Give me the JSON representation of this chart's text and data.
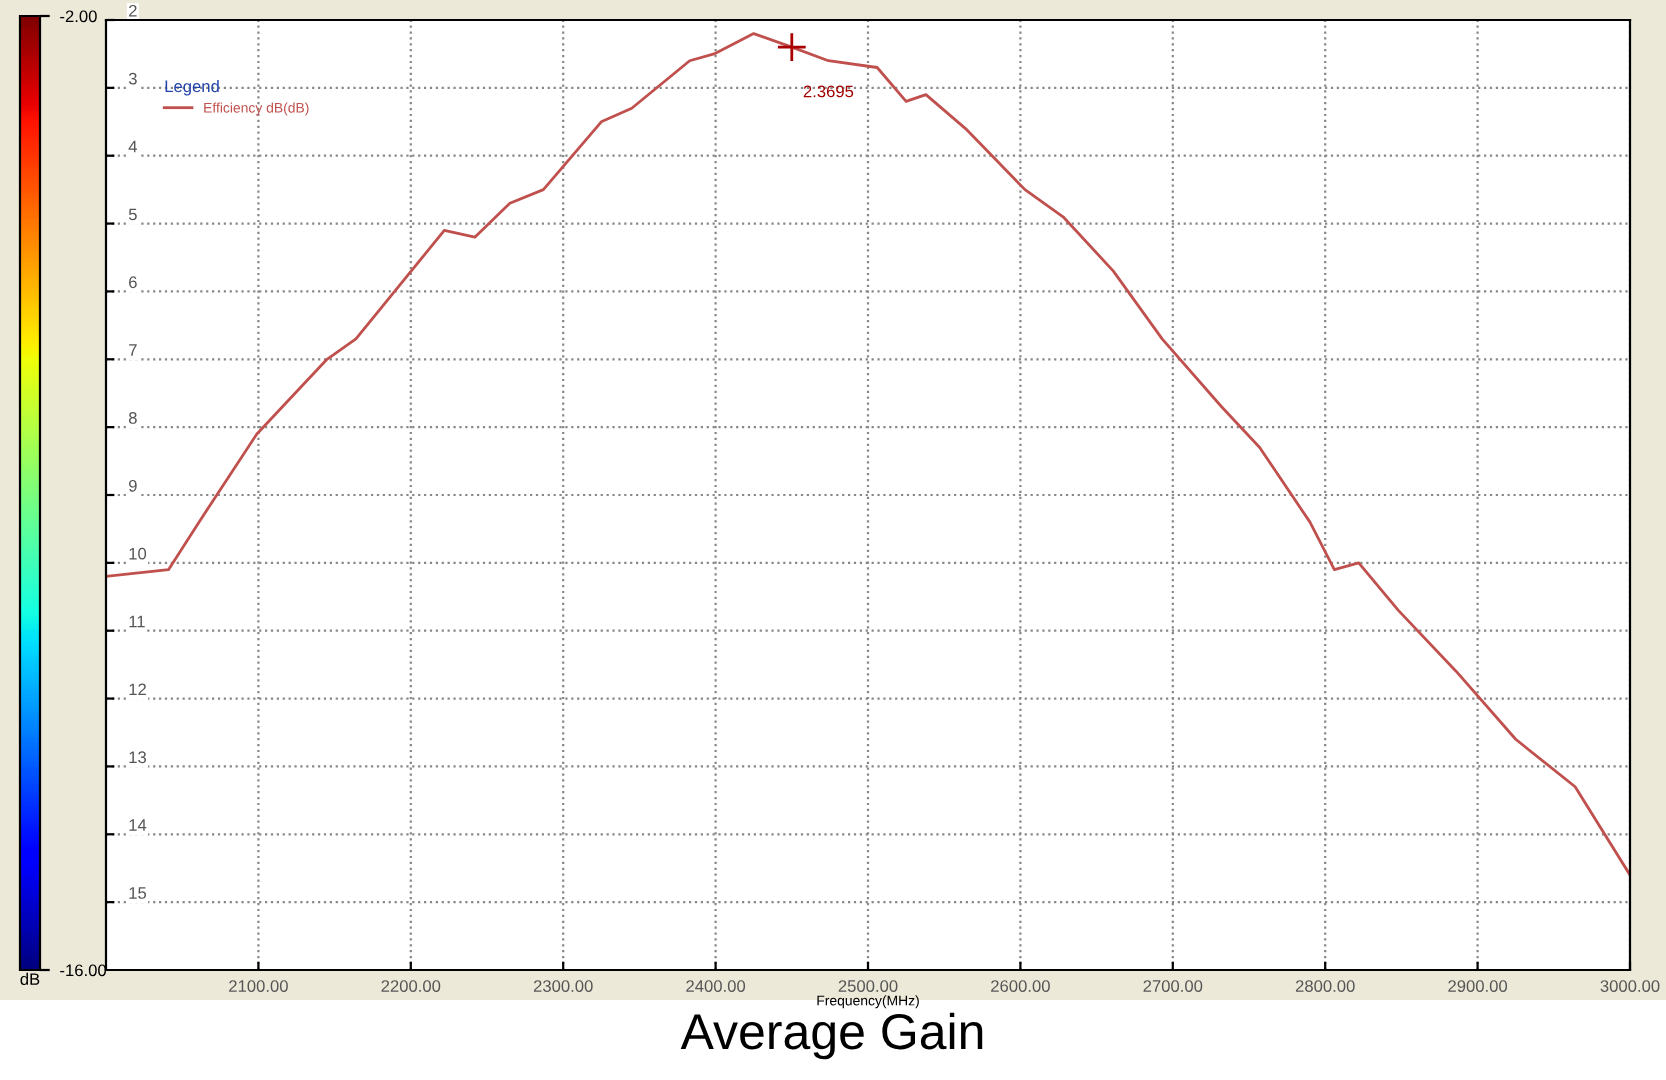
{
  "chart_data": {
    "type": "line",
    "title": "Average Gain",
    "xlabel": "Frequency(MHz)",
    "legend_title": "Legend",
    "clabel": "dB",
    "x": [
      2000,
      2041,
      2061,
      2099,
      2145,
      2164,
      2222,
      2242,
      2265,
      2287,
      2325,
      2345,
      2383,
      2399,
      2425,
      2450,
      2474,
      2506,
      2525,
      2538,
      2564,
      2603,
      2628,
      2661,
      2693,
      2732,
      2757,
      2790,
      2806,
      2822,
      2848,
      2886,
      2925,
      2964,
      3000
    ],
    "series": [
      {
        "name": "Efficiency dB(dB)",
        "color": "#c0504d",
        "values": [
          10.2,
          10.1,
          9.4,
          8.1,
          7.0,
          6.7,
          5.1,
          5.2,
          4.7,
          4.5,
          3.5,
          3.3,
          2.6,
          2.5,
          2.2,
          2.4,
          2.6,
          2.7,
          3.2,
          3.1,
          3.6,
          4.5,
          4.9,
          5.7,
          6.7,
          7.7,
          8.3,
          9.4,
          10.1,
          10.0,
          10.7,
          11.6,
          12.6,
          13.3,
          14.6
        ]
      }
    ],
    "annotations": [
      {
        "text": "2.3695",
        "x": 2450,
        "y": 2.4
      }
    ],
    "xlim": [
      2000,
      3000
    ],
    "xticks": [
      {
        "value": 2100,
        "label": "2100.00"
      },
      {
        "value": 2200,
        "label": "2200.00"
      },
      {
        "value": 2300,
        "label": "2300.00"
      },
      {
        "value": 2400,
        "label": "2400.00"
      },
      {
        "value": 2500,
        "label": "2500.00"
      },
      {
        "value": 2600,
        "label": "2600.00"
      },
      {
        "value": 2700,
        "label": "2700.00"
      },
      {
        "value": 2800,
        "label": "2800.00"
      },
      {
        "value": 2900,
        "label": "2900.00"
      },
      {
        "value": 3000,
        "label": "3000.00"
      }
    ],
    "ylim": [
      16,
      2
    ],
    "yticks": [
      2,
      3,
      4,
      5,
      6,
      7,
      8,
      9,
      10,
      11,
      12,
      13,
      14,
      15
    ],
    "clim": [
      -16,
      -2
    ],
    "cticks": [
      {
        "value": -2,
        "label": "-2.00"
      },
      {
        "value": -16,
        "label": "-16.00"
      }
    ],
    "grid": true,
    "legend": "top left",
    "line_style": "solid",
    "marker": "none"
  }
}
